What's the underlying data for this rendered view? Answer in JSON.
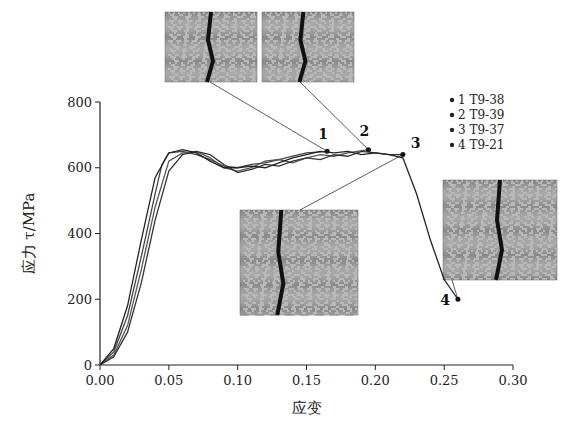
{
  "chart_data": {
    "type": "line",
    "x_label": "应变",
    "y_label": "应力 τ/MPa",
    "xlim": [
      0,
      0.3
    ],
    "ylim": [
      0,
      800
    ],
    "xticks": [
      {
        "value": 0,
        "label": "0.00"
      },
      {
        "value": 0.05,
        "label": "0.05"
      },
      {
        "value": 0.1,
        "label": "0.10"
      },
      {
        "value": 0.15,
        "label": "0.15"
      },
      {
        "value": 0.2,
        "label": "0.20"
      },
      {
        "value": 0.25,
        "label": "0.25"
      },
      {
        "value": 0.3,
        "label": "0.30"
      }
    ],
    "yticks": [
      0,
      200,
      400,
      600,
      800
    ],
    "grid": false,
    "legend": "upper right",
    "series": [
      {
        "name": "1 T9-38",
        "point_label": "1",
        "color": "#444444",
        "marker": "circle",
        "x": [
          0,
          0.01,
          0.02,
          0.03,
          0.04,
          0.045,
          0.05,
          0.06,
          0.07,
          0.08,
          0.09,
          0.1,
          0.11,
          0.12,
          0.13,
          0.14,
          0.15,
          0.165
        ],
        "values": [
          0,
          40,
          150,
          330,
          520,
          610,
          645,
          650,
          640,
          625,
          605,
          600,
          610,
          615,
          625,
          635,
          645,
          650
        ]
      },
      {
        "name": "2 T9-39",
        "point_label": "2",
        "color": "#555555",
        "marker": "circle",
        "x": [
          0,
          0.01,
          0.02,
          0.03,
          0.04,
          0.05,
          0.06,
          0.07,
          0.08,
          0.09,
          0.1,
          0.11,
          0.12,
          0.13,
          0.14,
          0.15,
          0.16,
          0.17,
          0.18,
          0.195
        ],
        "values": [
          0,
          30,
          120,
          290,
          480,
          620,
          645,
          650,
          630,
          600,
          590,
          600,
          620,
          625,
          615,
          630,
          640,
          635,
          645,
          655
        ]
      },
      {
        "name": "3 T9-37",
        "point_label": "3",
        "color": "#333333",
        "marker": "circle",
        "x": [
          0,
          0.01,
          0.02,
          0.03,
          0.04,
          0.05,
          0.06,
          0.07,
          0.08,
          0.09,
          0.1,
          0.11,
          0.12,
          0.13,
          0.14,
          0.15,
          0.16,
          0.17,
          0.18,
          0.19,
          0.2,
          0.21,
          0.22
        ],
        "values": [
          0,
          25,
          100,
          250,
          440,
          590,
          640,
          650,
          640,
          610,
          585,
          595,
          610,
          605,
          620,
          630,
          625,
          640,
          635,
          650,
          645,
          640,
          640
        ]
      },
      {
        "name": "4 T9-21",
        "point_label": "4",
        "color": "#222222",
        "marker": "circle",
        "x": [
          0,
          0.01,
          0.02,
          0.03,
          0.04,
          0.05,
          0.06,
          0.07,
          0.08,
          0.09,
          0.1,
          0.11,
          0.12,
          0.13,
          0.14,
          0.15,
          0.16,
          0.17,
          0.18,
          0.19,
          0.2,
          0.21,
          0.22,
          0.23,
          0.24,
          0.25,
          0.26
        ],
        "values": [
          0,
          50,
          180,
          380,
          570,
          645,
          655,
          645,
          620,
          600,
          600,
          605,
          600,
          615,
          630,
          640,
          650,
          645,
          650,
          640,
          645,
          640,
          630,
          520,
          380,
          260,
          200
        ]
      }
    ]
  }
}
